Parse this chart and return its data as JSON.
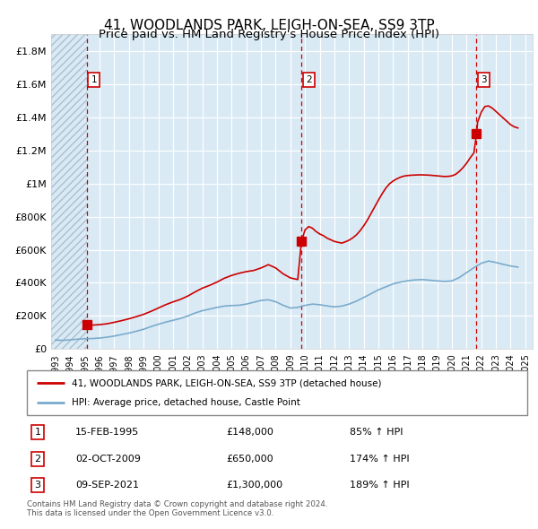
{
  "title": "41, WOODLANDS PARK, LEIGH-ON-SEA, SS9 3TP",
  "subtitle": "Price paid vs. HM Land Registry's House Price Index (HPI)",
  "bg_color": "#daeaf5",
  "hatch_color": "#aabfd0",
  "transactions": [
    {
      "num": 1,
      "date_str": "15-FEB-1995",
      "year": 1995.12,
      "price": 148000,
      "price_str": "£148,000",
      "hpi_pct": "85% ↑ HPI"
    },
    {
      "num": 2,
      "date_str": "02-OCT-2009",
      "year": 2009.75,
      "price": 650000,
      "price_str": "£650,000",
      "hpi_pct": "174% ↑ HPI"
    },
    {
      "num": 3,
      "date_str": "09-SEP-2021",
      "year": 2021.68,
      "price": 1300000,
      "price_str": "£1,300,000",
      "hpi_pct": "189% ↑ HPI"
    }
  ],
  "price_line_color": "#cc0000",
  "hpi_line_color": "#7aabcc",
  "vline_color": "#cc0000",
  "ylabel_ticks": [
    "£0",
    "£200K",
    "£400K",
    "£600K",
    "£800K",
    "£1M",
    "£1.2M",
    "£1.4M",
    "£1.6M",
    "£1.8M"
  ],
  "ytick_vals": [
    0,
    200000,
    400000,
    600000,
    800000,
    1000000,
    1200000,
    1400000,
    1600000,
    1800000
  ],
  "ylim": [
    0,
    1900000
  ],
  "xlim_start": 1992.7,
  "xlim_end": 2025.5,
  "xticks": [
    1993,
    1994,
    1995,
    1996,
    1997,
    1998,
    1999,
    2000,
    2001,
    2002,
    2003,
    2004,
    2005,
    2006,
    2007,
    2008,
    2009,
    2010,
    2011,
    2012,
    2013,
    2014,
    2015,
    2016,
    2017,
    2018,
    2019,
    2020,
    2021,
    2022,
    2023,
    2024,
    2025
  ],
  "legend_label_red": "41, WOODLANDS PARK, LEIGH-ON-SEA, SS9 3TP (detached house)",
  "legend_label_blue": "HPI: Average price, detached house, Castle Point",
  "footer": "Contains HM Land Registry data © Crown copyright and database right 2024.\nThis data is licensed under the Open Government Licence v3.0.",
  "price_data": [
    [
      1995.12,
      148000
    ],
    [
      1995.3,
      147000
    ],
    [
      1995.5,
      145000
    ],
    [
      1996.0,
      148000
    ],
    [
      1996.5,
      153000
    ],
    [
      1997.0,
      162000
    ],
    [
      1997.5,
      172000
    ],
    [
      1998.0,
      183000
    ],
    [
      1998.5,
      196000
    ],
    [
      1999.0,
      210000
    ],
    [
      1999.5,
      228000
    ],
    [
      2000.0,
      248000
    ],
    [
      2000.5,
      268000
    ],
    [
      2001.0,
      285000
    ],
    [
      2001.5,
      300000
    ],
    [
      2002.0,
      320000
    ],
    [
      2002.5,
      345000
    ],
    [
      2003.0,
      368000
    ],
    [
      2003.5,
      385000
    ],
    [
      2004.0,
      405000
    ],
    [
      2004.5,
      428000
    ],
    [
      2005.0,
      445000
    ],
    [
      2005.5,
      458000
    ],
    [
      2006.0,
      468000
    ],
    [
      2006.5,
      475000
    ],
    [
      2007.0,
      490000
    ],
    [
      2007.5,
      510000
    ],
    [
      2008.0,
      490000
    ],
    [
      2008.5,
      455000
    ],
    [
      2009.0,
      430000
    ],
    [
      2009.5,
      420000
    ],
    [
      2009.75,
      650000
    ],
    [
      2010.0,
      720000
    ],
    [
      2010.25,
      740000
    ],
    [
      2010.5,
      730000
    ],
    [
      2010.75,
      710000
    ],
    [
      2011.0,
      695000
    ],
    [
      2011.25,
      685000
    ],
    [
      2011.5,
      670000
    ],
    [
      2011.75,
      660000
    ],
    [
      2012.0,
      650000
    ],
    [
      2012.25,
      645000
    ],
    [
      2012.5,
      640000
    ],
    [
      2012.75,
      648000
    ],
    [
      2013.0,
      658000
    ],
    [
      2013.25,
      672000
    ],
    [
      2013.5,
      690000
    ],
    [
      2013.75,
      715000
    ],
    [
      2014.0,
      745000
    ],
    [
      2014.25,
      780000
    ],
    [
      2014.5,
      820000
    ],
    [
      2014.75,
      860000
    ],
    [
      2015.0,
      900000
    ],
    [
      2015.25,
      938000
    ],
    [
      2015.5,
      972000
    ],
    [
      2015.75,
      998000
    ],
    [
      2016.0,
      1015000
    ],
    [
      2016.25,
      1028000
    ],
    [
      2016.5,
      1038000
    ],
    [
      2016.75,
      1045000
    ],
    [
      2017.0,
      1048000
    ],
    [
      2017.25,
      1050000
    ],
    [
      2017.5,
      1051000
    ],
    [
      2017.75,
      1052000
    ],
    [
      2018.0,
      1052000
    ],
    [
      2018.25,
      1051000
    ],
    [
      2018.5,
      1050000
    ],
    [
      2018.75,
      1048000
    ],
    [
      2019.0,
      1046000
    ],
    [
      2019.25,
      1044000
    ],
    [
      2019.5,
      1042000
    ],
    [
      2019.75,
      1043000
    ],
    [
      2020.0,
      1046000
    ],
    [
      2020.25,
      1055000
    ],
    [
      2020.5,
      1072000
    ],
    [
      2020.75,
      1095000
    ],
    [
      2021.0,
      1122000
    ],
    [
      2021.25,
      1155000
    ],
    [
      2021.5,
      1185000
    ],
    [
      2021.68,
      1300000
    ],
    [
      2021.75,
      1370000
    ],
    [
      2022.0,
      1430000
    ],
    [
      2022.25,
      1465000
    ],
    [
      2022.5,
      1468000
    ],
    [
      2022.75,
      1455000
    ],
    [
      2023.0,
      1435000
    ],
    [
      2023.25,
      1415000
    ],
    [
      2023.5,
      1395000
    ],
    [
      2023.75,
      1375000
    ],
    [
      2024.0,
      1355000
    ],
    [
      2024.25,
      1342000
    ],
    [
      2024.5,
      1335000
    ]
  ],
  "hpi_data": [
    [
      1993.0,
      55000
    ],
    [
      1993.5,
      53000
    ],
    [
      1994.0,
      56000
    ],
    [
      1994.5,
      60000
    ],
    [
      1995.0,
      63000
    ],
    [
      1995.5,
      64000
    ],
    [
      1996.0,
      67000
    ],
    [
      1996.5,
      72000
    ],
    [
      1997.0,
      79000
    ],
    [
      1997.5,
      88000
    ],
    [
      1998.0,
      97000
    ],
    [
      1998.5,
      108000
    ],
    [
      1999.0,
      120000
    ],
    [
      1999.5,
      136000
    ],
    [
      2000.0,
      150000
    ],
    [
      2000.5,
      163000
    ],
    [
      2001.0,
      174000
    ],
    [
      2001.5,
      185000
    ],
    [
      2002.0,
      200000
    ],
    [
      2002.5,
      218000
    ],
    [
      2003.0,
      232000
    ],
    [
      2003.5,
      242000
    ],
    [
      2004.0,
      252000
    ],
    [
      2004.5,
      260000
    ],
    [
      2005.0,
      263000
    ],
    [
      2005.5,
      265000
    ],
    [
      2006.0,
      272000
    ],
    [
      2006.5,
      283000
    ],
    [
      2007.0,
      294000
    ],
    [
      2007.5,
      298000
    ],
    [
      2008.0,
      286000
    ],
    [
      2008.5,
      265000
    ],
    [
      2009.0,
      248000
    ],
    [
      2009.5,
      252000
    ],
    [
      2010.0,
      264000
    ],
    [
      2010.5,
      272000
    ],
    [
      2011.0,
      268000
    ],
    [
      2011.5,
      261000
    ],
    [
      2012.0,
      255000
    ],
    [
      2012.5,
      260000
    ],
    [
      2013.0,
      272000
    ],
    [
      2013.5,
      290000
    ],
    [
      2014.0,
      312000
    ],
    [
      2014.5,
      335000
    ],
    [
      2015.0,
      358000
    ],
    [
      2015.5,
      376000
    ],
    [
      2016.0,
      394000
    ],
    [
      2016.5,
      405000
    ],
    [
      2017.0,
      413000
    ],
    [
      2017.5,
      418000
    ],
    [
      2018.0,
      420000
    ],
    [
      2018.5,
      416000
    ],
    [
      2019.0,
      412000
    ],
    [
      2019.5,
      409000
    ],
    [
      2020.0,
      412000
    ],
    [
      2020.5,
      432000
    ],
    [
      2021.0,
      462000
    ],
    [
      2021.5,
      492000
    ],
    [
      2022.0,
      518000
    ],
    [
      2022.5,
      532000
    ],
    [
      2023.0,
      523000
    ],
    [
      2023.5,
      512000
    ],
    [
      2024.0,
      502000
    ],
    [
      2024.5,
      495000
    ]
  ]
}
